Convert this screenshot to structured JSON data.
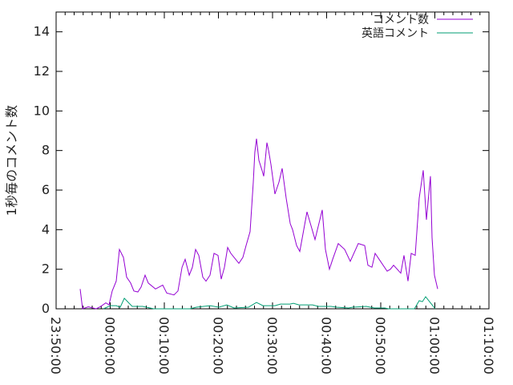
{
  "chart_data": {
    "type": "line",
    "title": "",
    "xlabel": "",
    "ylabel": "1秒毎のコメント数",
    "xlim": [
      "23:50:00",
      "01:10:00"
    ],
    "ylim": [
      0,
      15
    ],
    "xticks": [
      "23:50:00",
      "00:00:00",
      "00:10:00",
      "00:20:00",
      "00:30:00",
      "00:40:00",
      "00:50:00",
      "01:00:00",
      "01:10:00"
    ],
    "yticks": [
      0,
      2,
      4,
      6,
      8,
      10,
      12,
      14
    ],
    "grid": false,
    "legend_position": "top-right",
    "series": [
      {
        "name": "コメント数",
        "color": "#9400d3",
        "x": [
          "23:54:27",
          "23:54:53",
          "23:55:56",
          "23:57:24",
          "23:58:09",
          "23:59:11",
          "23:59:47",
          "00:00:22",
          "00:01:07",
          "00:01:42",
          "00:02:27",
          "00:03:02",
          "00:03:47",
          "00:04:22",
          "00:05:07",
          "00:05:42",
          "00:06:27",
          "00:07:02",
          "00:08:22",
          "00:09:42",
          "00:10:27",
          "00:11:47",
          "00:12:31",
          "00:13:16",
          "00:13:51",
          "00:14:36",
          "00:15:11",
          "00:15:47",
          "00:16:22",
          "00:17:07",
          "00:17:42",
          "00:18:27",
          "00:19:11",
          "00:19:56",
          "00:20:31",
          "00:21:07",
          "00:21:42",
          "00:22:18",
          "00:23:47",
          "00:24:31",
          "00:25:07",
          "00:25:51",
          "00:26:27",
          "00:26:44",
          "00:27:02",
          "00:27:29",
          "00:28:04",
          "00:28:22",
          "00:28:58",
          "00:29:16",
          "00:29:42",
          "00:30:27",
          "00:31:11",
          "00:31:47",
          "00:32:31",
          "00:33:16",
          "00:33:42",
          "00:34:27",
          "00:35:02",
          "00:36:22",
          "00:37:51",
          "00:39:11",
          "00:39:47",
          "00:40:31",
          "00:41:07",
          "00:42:09",
          "00:43:20",
          "00:44:22",
          "00:45:51",
          "00:47:02",
          "00:47:38",
          "00:48:22",
          "00:48:58",
          "00:49:42",
          "00:51:11",
          "00:51:47",
          "00:52:22",
          "00:53:42",
          "00:54:18",
          "00:55:02",
          "00:55:38",
          "00:56:22",
          "00:57:07",
          "00:57:51",
          "00:58:27",
          "00:59:11",
          "00:59:29",
          "00:59:56",
          "01:00:31"
        ],
        "values": [
          1.0,
          0,
          0.1,
          0,
          0.1,
          0.3,
          0.2,
          0.9,
          1.4,
          3.0,
          2.6,
          1.6,
          1.3,
          0.9,
          0.85,
          1.1,
          1.7,
          1.3,
          1.0,
          1.2,
          0.8,
          0.7,
          0.9,
          2.1,
          2.5,
          1.7,
          2.1,
          3.0,
          2.7,
          1.6,
          1.4,
          1.7,
          2.8,
          2.7,
          1.5,
          2.1,
          3.1,
          2.8,
          2.3,
          2.6,
          3.2,
          3.9,
          6.4,
          7.9,
          8.6,
          7.5,
          7.0,
          6.7,
          8.4,
          8.0,
          7.3,
          5.8,
          6.4,
          7.1,
          5.6,
          4.3,
          4.0,
          3.2,
          2.9,
          4.9,
          3.5,
          5.0,
          3.0,
          2.0,
          2.5,
          3.3,
          3.0,
          2.4,
          3.3,
          3.2,
          2.2,
          2.1,
          2.8,
          2.5,
          1.9,
          2.0,
          2.2,
          1.8,
          2.7,
          1.4,
          2.8,
          2.7,
          5.6,
          7.0,
          4.5,
          6.7,
          3.6,
          1.7,
          1.0
        ]
      },
      {
        "name": "英語コメント",
        "color": "#009e73",
        "x": [
          "23:58:44",
          "00:00:04",
          "00:01:07",
          "00:01:51",
          "00:02:36",
          "00:04:04",
          "00:06:00",
          "00:08:04",
          "00:10:00",
          "00:11:47",
          "00:14:44",
          "00:15:56",
          "00:18:27",
          "00:20:04",
          "00:21:33",
          "00:22:53",
          "00:25:33",
          "00:27:02",
          "00:28:13",
          "00:30:27",
          "00:31:29",
          "00:33:16",
          "00:33:51",
          "00:34:53",
          "00:37:24",
          "00:38:27",
          "00:40:49",
          "00:41:51",
          "00:44:04",
          "00:44:49",
          "00:47:20",
          "00:48:49",
          "00:50:44",
          "00:51:29",
          "00:53:42",
          "00:55:38",
          "00:56:13",
          "00:57:07",
          "00:57:42",
          "00:58:18",
          "01:00:04"
        ],
        "values": [
          0,
          0.16,
          0.16,
          0.08,
          0.53,
          0.12,
          0.12,
          0,
          0,
          0,
          0,
          0.08,
          0.16,
          0.08,
          0.2,
          0.04,
          0.08,
          0.32,
          0.16,
          0.16,
          0.24,
          0.24,
          0.28,
          0.2,
          0.2,
          0.12,
          0.12,
          0.08,
          0.04,
          0.08,
          0.12,
          0.04,
          0.04,
          0,
          0,
          0,
          0,
          0.41,
          0.36,
          0.61,
          0
        ]
      }
    ]
  }
}
